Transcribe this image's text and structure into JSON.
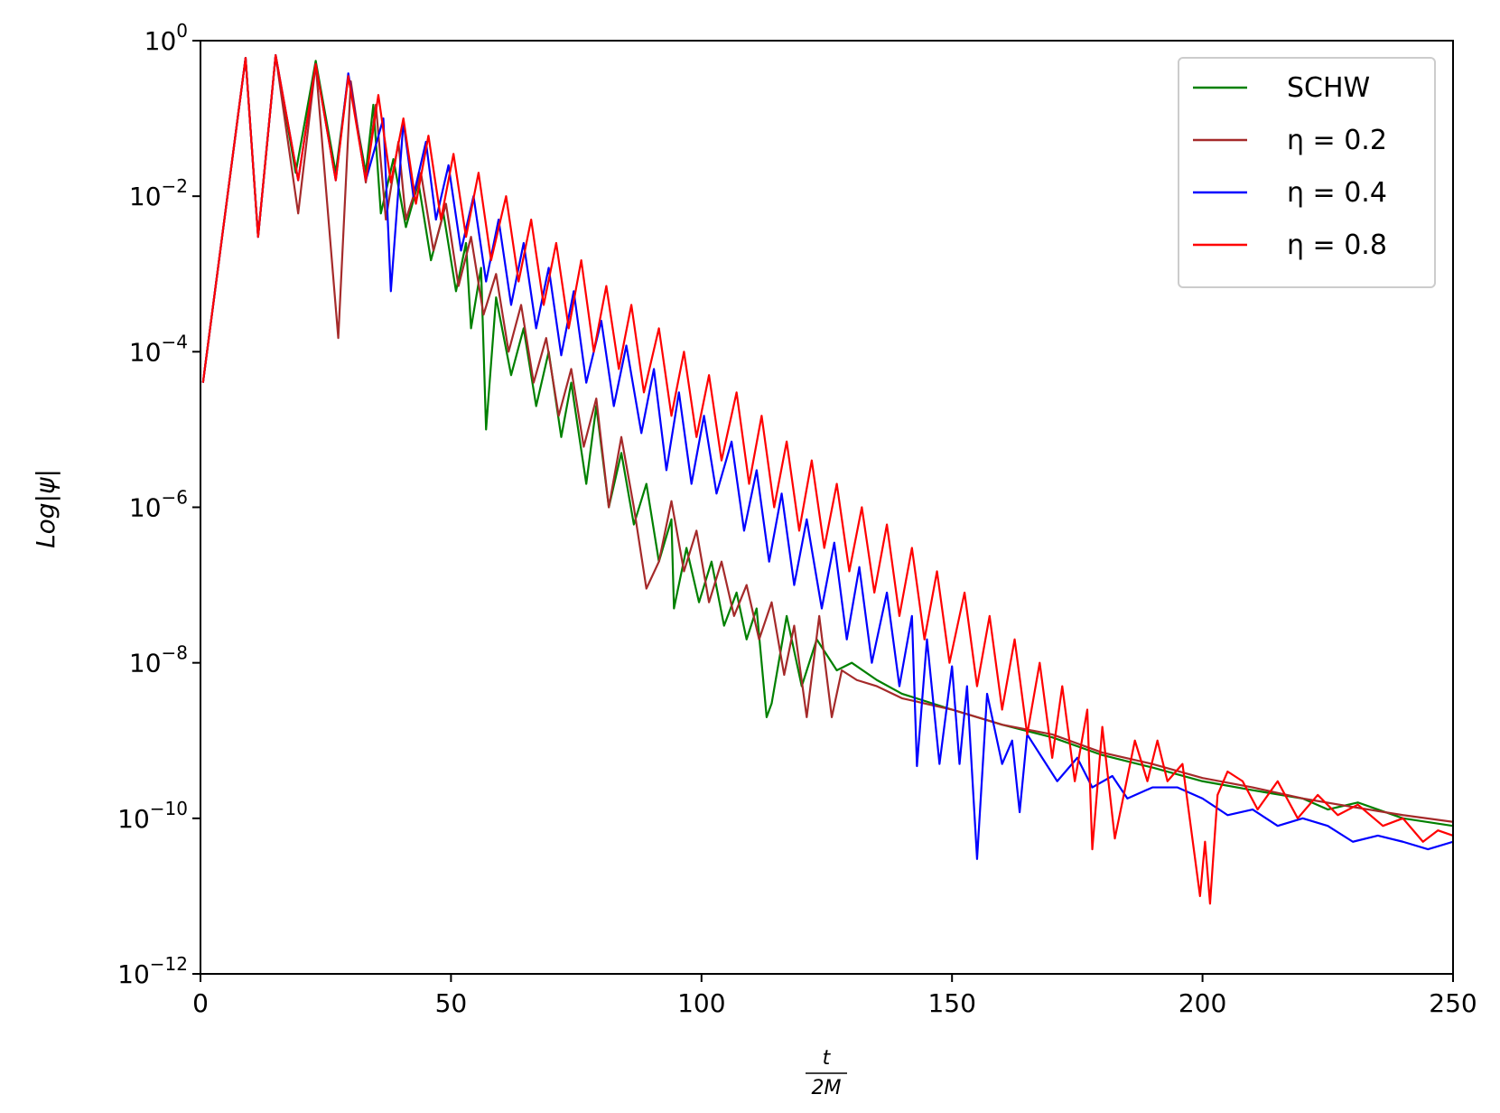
{
  "chart_data": {
    "type": "line",
    "ylabel": "Log|ψ|",
    "xlabel": {
      "numerator": "t",
      "denominator": "2M"
    },
    "xlim": [
      0,
      250
    ],
    "xticks": [
      0,
      50,
      100,
      150,
      200,
      250
    ],
    "ylim": [
      1e-12,
      1
    ],
    "log_y": true,
    "yticks": [
      {
        "value": 1,
        "label": "10",
        "exponent": "0"
      },
      {
        "value": 0.01,
        "label": "10",
        "exponent": "−2"
      },
      {
        "value": 0.0001,
        "label": "10",
        "exponent": "−4"
      },
      {
        "value": 1e-06,
        "label": "10",
        "exponent": "−6"
      },
      {
        "value": 1e-08,
        "label": "10",
        "exponent": "−8"
      },
      {
        "value": 1e-10,
        "label": "10",
        "exponent": "−10"
      },
      {
        "value": 1e-12,
        "label": "10",
        "exponent": "−12"
      }
    ],
    "grid": false,
    "legend": "upper right",
    "series": [
      {
        "name": "SCHW",
        "color": "#008000",
        "x": [
          0.5,
          9,
          11.5,
          15,
          19,
          23,
          27,
          29.5,
          33,
          34.5,
          36,
          38.5,
          41,
          43.5,
          46,
          48.5,
          51,
          53,
          54,
          56,
          57,
          59,
          62,
          64.5,
          67,
          69.5,
          72,
          74,
          77,
          79,
          81.5,
          84,
          86.5,
          89,
          91.5,
          94,
          94.5,
          97,
          99.5,
          102,
          104.5,
          107,
          109,
          111,
          113,
          114,
          117,
          120,
          123,
          127,
          130,
          135,
          140,
          150,
          160,
          170,
          180,
          190,
          200,
          210,
          220,
          225,
          231,
          240,
          250
        ],
        "values": [
          4e-05,
          0.6,
          0.003,
          0.65,
          0.02,
          0.55,
          0.02,
          0.35,
          0.02,
          0.15,
          0.006,
          0.03,
          0.004,
          0.015,
          0.0015,
          0.006,
          0.0006,
          0.0025,
          0.0002,
          0.0012,
          1e-05,
          0.0005,
          5e-05,
          0.0002,
          2e-05,
          0.0001,
          8e-06,
          4e-05,
          2e-06,
          2e-05,
          1e-06,
          5e-06,
          6e-07,
          2e-06,
          2e-07,
          7e-07,
          5e-08,
          3e-07,
          6e-08,
          2e-07,
          3e-08,
          8e-08,
          2e-08,
          5e-08,
          2e-09,
          3e-09,
          4e-08,
          5e-09,
          2e-08,
          8e-09,
          1e-08,
          6e-09,
          4e-09,
          2.5e-09,
          1.6e-09,
          1.1e-09,
          6.5e-10,
          4.5e-10,
          3e-10,
          2.3e-10,
          1.8e-10,
          1.3e-10,
          1.6e-10,
          1e-10,
          8e-11
        ]
      },
      {
        "name": "η = 0.2",
        "color": "#a52a2a",
        "x": [
          0.5,
          9,
          11.5,
          15,
          19.5,
          23,
          27.5,
          30,
          33,
          35,
          37,
          39.5,
          41,
          44,
          46.5,
          49,
          51.5,
          54,
          56.5,
          59,
          61.5,
          64,
          66.5,
          69,
          71.5,
          74,
          76.5,
          79,
          81.5,
          84,
          86.5,
          89,
          91.5,
          94,
          96.5,
          99,
          101.5,
          104,
          106.5,
          109,
          111.5,
          114,
          116.5,
          118.5,
          121,
          123.5,
          126,
          128,
          131,
          135,
          140,
          150,
          160,
          170,
          180,
          190,
          200,
          210,
          220,
          230,
          240,
          250
        ],
        "values": [
          4e-05,
          0.6,
          0.003,
          0.65,
          0.006,
          0.5,
          0.00015,
          0.3,
          0.015,
          0.15,
          0.005,
          0.05,
          0.005,
          0.02,
          0.002,
          0.008,
          0.0007,
          0.003,
          0.0003,
          0.001,
          0.0001,
          0.0004,
          4e-05,
          0.00015,
          1.5e-05,
          6e-05,
          6e-06,
          2.5e-05,
          1e-06,
          8e-06,
          1e-06,
          9e-08,
          2e-07,
          1.2e-06,
          1.5e-07,
          5e-07,
          6e-08,
          2e-07,
          4e-08,
          1e-07,
          2e-08,
          6e-08,
          7e-09,
          3e-08,
          2e-09,
          4e-08,
          2e-09,
          8e-09,
          6e-09,
          5e-09,
          3.5e-09,
          2.5e-09,
          1.6e-09,
          1.2e-09,
          7e-10,
          5e-10,
          3.3e-10,
          2.5e-10,
          1.8e-10,
          1.4e-10,
          1.1e-10,
          9e-11
        ]
      },
      {
        "name": "η = 0.4",
        "color": "#0000ff",
        "x": [
          0.5,
          9,
          11.5,
          15,
          19.5,
          23,
          27,
          29.5,
          33,
          36.5,
          38,
          40.5,
          42.5,
          45,
          47,
          49.5,
          52,
          54.5,
          57,
          59.5,
          62,
          64.5,
          67,
          69.5,
          72,
          74.5,
          77,
          80,
          82.5,
          85,
          88,
          90.5,
          93,
          95.5,
          98,
          100.5,
          103,
          106,
          108.5,
          111,
          113.5,
          116,
          118.5,
          121,
          124,
          126.5,
          129,
          131.5,
          134,
          137,
          139.5,
          142,
          143,
          145,
          147.5,
          150,
          151.5,
          153,
          155,
          157,
          160,
          162,
          163.5,
          165,
          168,
          171,
          175,
          178,
          182,
          185,
          190,
          195,
          200,
          205,
          210,
          215,
          220,
          225,
          230,
          235,
          240,
          245,
          250
        ],
        "values": [
          4e-05,
          0.6,
          0.003,
          0.65,
          0.016,
          0.5,
          0.016,
          0.38,
          0.016,
          0.1,
          0.0006,
          0.09,
          0.01,
          0.05,
          0.005,
          0.025,
          0.002,
          0.01,
          0.0008,
          0.005,
          0.0004,
          0.0025,
          0.0002,
          0.0012,
          9e-05,
          0.0006,
          4e-05,
          0.00025,
          2e-05,
          0.00012,
          9e-06,
          6e-05,
          3e-06,
          3e-05,
          2e-06,
          1.5e-05,
          1.5e-06,
          7e-06,
          5e-07,
          3e-06,
          2e-07,
          1.5e-06,
          1e-07,
          7e-07,
          5e-08,
          3.5e-07,
          2e-08,
          1.7e-07,
          1e-08,
          8e-08,
          5e-09,
          4e-08,
          4.7e-10,
          2e-08,
          5e-10,
          9e-09,
          5e-10,
          5e-09,
          3e-11,
          4e-09,
          5e-10,
          1e-09,
          1.2e-10,
          1.2e-09,
          6e-10,
          3e-10,
          6e-10,
          2.5e-10,
          3.5e-10,
          1.8e-10,
          2.5e-10,
          2.5e-10,
          1.8e-10,
          1.1e-10,
          1.3e-10,
          8e-11,
          1e-10,
          8e-11,
          5e-11,
          6e-11,
          5e-11,
          4e-11,
          5e-11
        ]
      },
      {
        "name": "η = 0.8",
        "color": "#ff0000",
        "x": [
          0.5,
          9,
          11.5,
          15,
          19.5,
          23,
          27,
          29.5,
          33,
          35.5,
          38,
          40.5,
          43,
          45.5,
          48,
          50.5,
          53,
          55.5,
          58,
          61,
          63.5,
          66,
          68.5,
          71,
          73.5,
          76,
          78.5,
          81,
          83.5,
          86,
          88.5,
          91.5,
          94,
          96.5,
          99,
          101.5,
          104,
          107,
          109.5,
          112,
          114.5,
          117,
          119.5,
          122,
          124.5,
          127,
          129.5,
          132,
          134.5,
          137,
          139.5,
          142,
          144.5,
          147,
          149.5,
          152.5,
          155,
          157.5,
          160,
          162.5,
          165,
          167.5,
          170,
          172,
          174.5,
          177,
          178,
          180,
          182.5,
          186.5,
          189,
          191,
          193,
          196,
          199.5,
          200.5,
          201.5,
          203,
          205,
          208,
          211,
          215,
          219,
          223,
          227,
          231,
          236,
          240,
          244,
          247,
          250
        ],
        "values": [
          4e-05,
          0.6,
          0.003,
          0.65,
          0.016,
          0.5,
          0.016,
          0.35,
          0.016,
          0.2,
          0.015,
          0.1,
          0.008,
          0.06,
          0.005,
          0.035,
          0.003,
          0.02,
          0.0015,
          0.01,
          0.0008,
          0.005,
          0.0004,
          0.0025,
          0.0002,
          0.0015,
          0.0001,
          0.0007,
          6e-05,
          0.0004,
          3e-05,
          0.0002,
          1.5e-05,
          0.0001,
          8e-06,
          5e-05,
          4e-06,
          3e-05,
          2e-06,
          1.5e-05,
          1e-06,
          7e-06,
          5e-07,
          4e-06,
          3e-07,
          2e-06,
          1.5e-07,
          1e-06,
          8e-08,
          6e-07,
          4e-08,
          3e-07,
          2e-08,
          1.5e-07,
          1e-08,
          8e-08,
          5e-09,
          4e-08,
          2.5e-09,
          2e-08,
          1.2e-09,
          1e-08,
          6e-10,
          5e-09,
          3e-10,
          2.5e-09,
          4e-11,
          1.5e-09,
          5.5e-11,
          1e-09,
          3e-10,
          1e-09,
          3e-10,
          5e-10,
          1e-11,
          5e-11,
          8e-12,
          2e-10,
          4e-10,
          3e-10,
          1.3e-10,
          3e-10,
          1e-10,
          2e-10,
          1.1e-10,
          1.5e-10,
          8e-11,
          1e-10,
          5e-11,
          7e-11,
          6e-11
        ]
      }
    ]
  }
}
